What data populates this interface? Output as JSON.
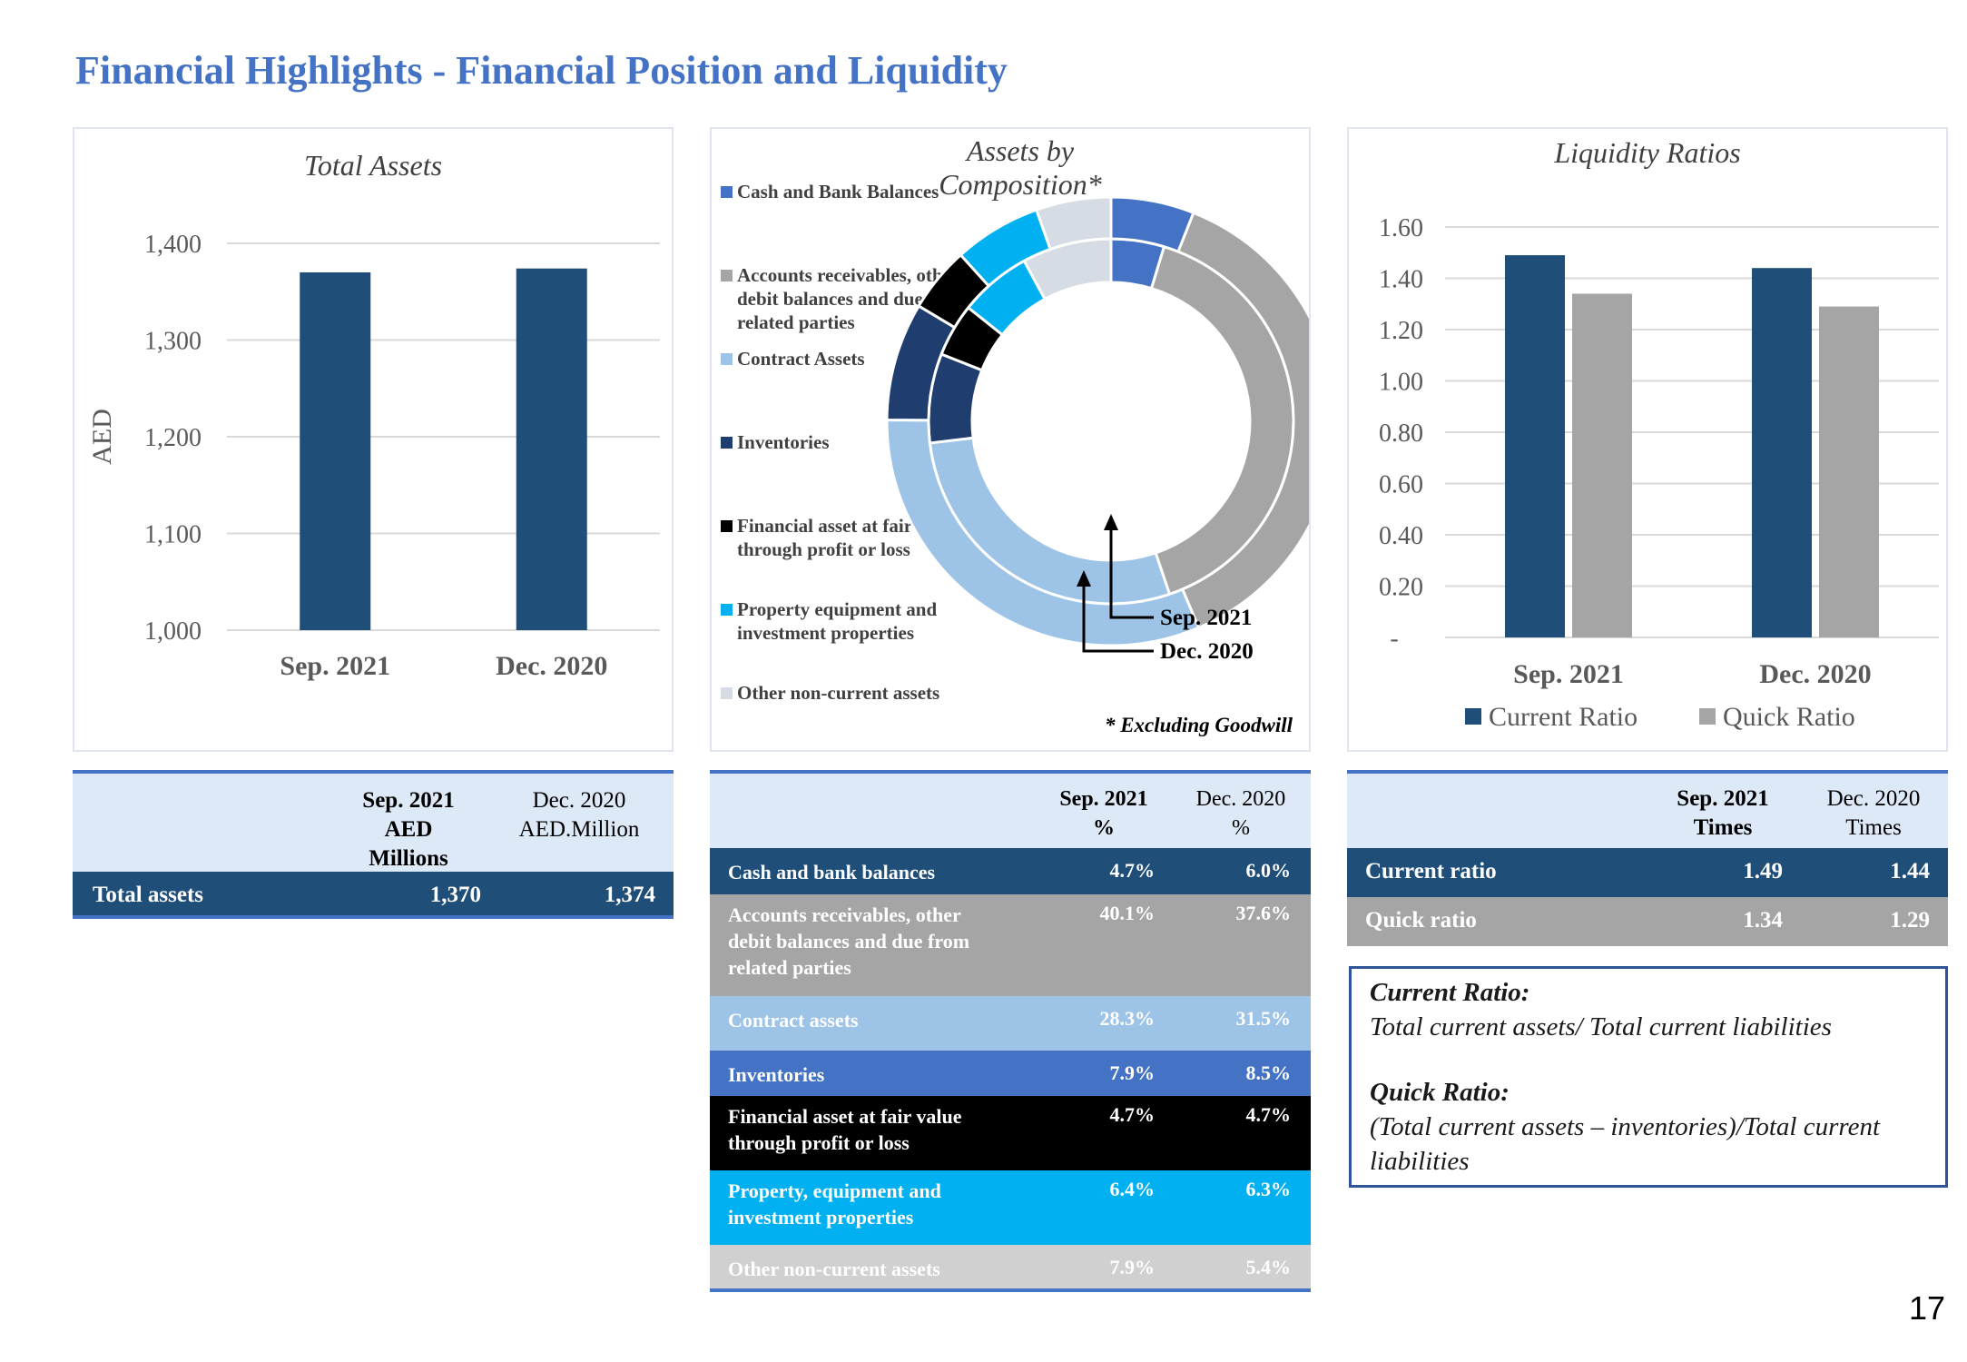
{
  "page_title": "Financial Highlights - Financial Position and Liquidity",
  "page_number": "17",
  "colors": {
    "navy": "#1f4e79",
    "grey": "#a5a5a5",
    "light_blue": "#9dc3e6",
    "blue": "#4472c4",
    "black": "#000000",
    "cyan": "#00b0f0",
    "light_grey": "#d0d7e0",
    "header_bg": "#dde9f6"
  },
  "chart_data": [
    {
      "type": "bar",
      "title": "Total Assets",
      "ylabel": "AED",
      "categories": [
        "Sep. 2021",
        "Dec. 2020"
      ],
      "values": [
        1370,
        1374
      ],
      "ylim": [
        1000,
        1400
      ],
      "yticks": [
        "1,000",
        "1,100",
        "1,200",
        "1,300",
        "1,400"
      ],
      "grid": true
    },
    {
      "type": "pie",
      "title": "Assets by Composition*",
      "rings": [
        {
          "name": "Sep. 2021",
          "position": "inner",
          "values": [
            4.7,
            40.1,
            28.3,
            7.9,
            4.7,
            6.4,
            7.9
          ]
        },
        {
          "name": "Dec. 2020",
          "position": "outer",
          "values": [
            6.0,
            37.6,
            31.5,
            8.5,
            4.7,
            6.3,
            5.4
          ]
        }
      ],
      "categories": [
        "Cash and Bank Balances",
        "Accounts receivables, other debit balances and due from related parties",
        "Contract Assets",
        "Inventories",
        "Financial asset at fair value through profit or loss",
        "Property equipment and investment properties",
        "Other non-current assets"
      ],
      "legend": [
        {
          "label": "Cash and Bank Balances",
          "color": "#4472c4"
        },
        {
          "label": "Accounts receivables, other debit balances and due from related parties",
          "color": "#a5a5a5"
        },
        {
          "label": "Contract Assets",
          "color": "#9dc3e6"
        },
        {
          "label": "Inventories",
          "color": "#1f3d6e"
        },
        {
          "label": "Financial asset at fair value through profit or loss",
          "color": "#000000"
        },
        {
          "label": "Property equipment and investment properties",
          "color": "#00b0f0"
        },
        {
          "label": "Other non-current assets",
          "color": "#d6dce4"
        }
      ],
      "legend_placement": "left",
      "annotations": [
        "Sep. 2021",
        "Dec. 2020"
      ],
      "footnote": "* Excluding Goodwill"
    },
    {
      "type": "bar",
      "title": "Liquidity Ratios",
      "categories": [
        "Sep. 2021",
        "Dec. 2020"
      ],
      "series": [
        {
          "name": "Current Ratio",
          "values": [
            1.49,
            1.44
          ],
          "color": "#1f4e79"
        },
        {
          "name": "Quick Ratio",
          "values": [
            1.34,
            1.29
          ],
          "color": "#a5a5a5"
        }
      ],
      "ylim": [
        0,
        1.6
      ],
      "yticks": [
        "-",
        "0.20",
        "0.40",
        "0.60",
        "0.80",
        "1.00",
        "1.20",
        "1.40",
        "1.60"
      ],
      "legend_placement": "bottom",
      "grid": true
    }
  ],
  "total_assets_table": {
    "col1_header": [
      "Sep. 2021",
      "AED",
      "Millions"
    ],
    "col2_header": [
      "Dec. 2020",
      "AED.Million"
    ],
    "row_label": "Total assets",
    "sep_value": "1,370",
    "dec_value": "1,374"
  },
  "composition_table": {
    "col1_header": [
      "Sep. 2021",
      "%"
    ],
    "col2_header": [
      "Dec. 2020",
      "%"
    ],
    "rows": [
      {
        "label": [
          "Cash and bank balances"
        ],
        "sep": "4.7%",
        "dec": "6.0%",
        "bg": "#1f4e79",
        "fg": "#ffffff"
      },
      {
        "label": [
          "Accounts receivables, other",
          "debit balances and due from",
          "related parties"
        ],
        "sep": "40.1%",
        "dec": "37.6%",
        "bg": "#a5a5a5",
        "fg": "#ffffff"
      },
      {
        "label": [
          "Contract assets"
        ],
        "sep": "28.3%",
        "dec": "31.5%",
        "bg": "#9dc3e6",
        "fg": "#ffffff"
      },
      {
        "label": [
          "Inventories"
        ],
        "sep": "7.9%",
        "dec": "8.5%",
        "bg": "#4472c4",
        "fg": "#ffffff"
      },
      {
        "label": [
          "Financial asset at fair value",
          "through profit or loss"
        ],
        "sep": "4.7%",
        "dec": "4.7%",
        "bg": "#000000",
        "fg": "#ffffff"
      },
      {
        "label": [
          "Property, equipment and",
          "investment properties"
        ],
        "sep": "6.4%",
        "dec": "6.3%",
        "bg": "#00b0f0",
        "fg": "#ffffff"
      },
      {
        "label": [
          "Other non-current assets"
        ],
        "sep": "7.9%",
        "dec": "5.4%",
        "bg": "#d0d0d0",
        "fg": "#ffffff"
      }
    ]
  },
  "liquidity_table": {
    "col1_header": [
      "Sep. 2021",
      "Times"
    ],
    "col2_header": [
      "Dec. 2020",
      "Times"
    ],
    "rows": [
      {
        "label": "Current ratio",
        "sep": "1.49",
        "dec": "1.44",
        "bg": "#1f4e79"
      },
      {
        "label": "Quick ratio",
        "sep": "1.34",
        "dec": "1.29",
        "bg": "#a5a5a5"
      }
    ]
  },
  "definitions": {
    "current_title": "Current Ratio:",
    "current_text": "Total current assets/ Total current liabilities",
    "quick_title": "Quick Ratio:",
    "quick_text_1": "(Total current assets – inventories)/Total current",
    "quick_text_2": "liabilities"
  }
}
